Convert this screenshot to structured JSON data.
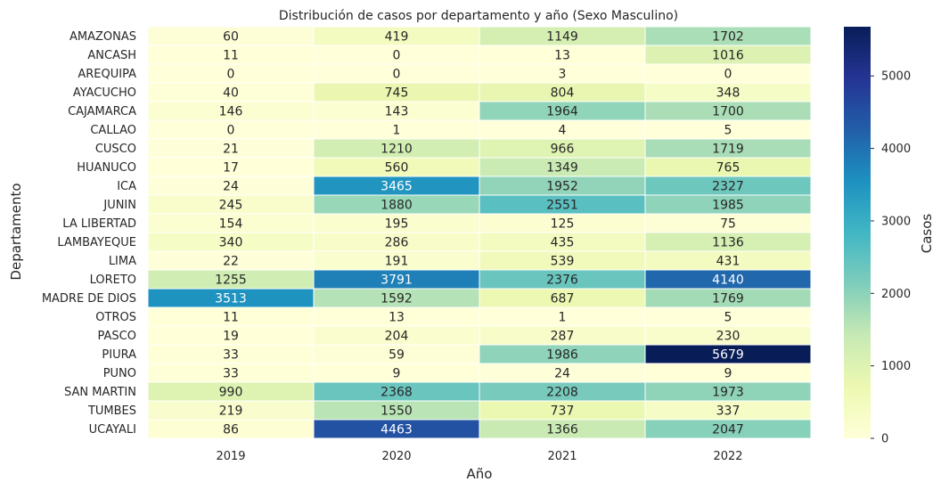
{
  "chart_data": {
    "type": "heatmap",
    "title": "Distribución de casos por departamento y año (Sexo Masculino)",
    "xlabel": "Año",
    "ylabel": "Departamento",
    "colorbar_label": "Casos",
    "colormap": "YlGnBu",
    "color_range": [
      0,
      5679
    ],
    "colorbar_ticks": [
      0,
      1000,
      2000,
      3000,
      4000,
      5000
    ],
    "x_categories": [
      "2019",
      "2020",
      "2021",
      "2022"
    ],
    "y_categories": [
      "AMAZONAS",
      "ANCASH",
      "AREQUIPA",
      "AYACUCHO",
      "CAJAMARCA",
      "CALLAO",
      "CUSCO",
      "HUANUCO",
      "ICA",
      "JUNIN",
      "LA LIBERTAD",
      "LAMBAYEQUE",
      "LIMA",
      "LORETO",
      "MADRE DE DIOS",
      "OTROS",
      "PASCO",
      "PIURA",
      "PUNO",
      "SAN MARTIN",
      "TUMBES",
      "UCAYALI"
    ],
    "values": [
      [
        60,
        419,
        1149,
        1702
      ],
      [
        11,
        0,
        13,
        1016
      ],
      [
        0,
        0,
        3,
        0
      ],
      [
        40,
        745,
        804,
        348
      ],
      [
        146,
        143,
        1964,
        1700
      ],
      [
        0,
        1,
        4,
        5
      ],
      [
        21,
        1210,
        966,
        1719
      ],
      [
        17,
        560,
        1349,
        765
      ],
      [
        24,
        3465,
        1952,
        2327
      ],
      [
        245,
        1880,
        2551,
        1985
      ],
      [
        154,
        195,
        125,
        75
      ],
      [
        340,
        286,
        435,
        1136
      ],
      [
        22,
        191,
        539,
        431
      ],
      [
        1255,
        3791,
        2376,
        4140
      ],
      [
        3513,
        1592,
        687,
        1769
      ],
      [
        11,
        13,
        1,
        5
      ],
      [
        19,
        204,
        287,
        230
      ],
      [
        33,
        59,
        1986,
        5679
      ],
      [
        33,
        9,
        24,
        9
      ],
      [
        990,
        2368,
        2208,
        1973
      ],
      [
        219,
        1550,
        737,
        337
      ],
      [
        86,
        4463,
        1366,
        2047
      ]
    ]
  }
}
